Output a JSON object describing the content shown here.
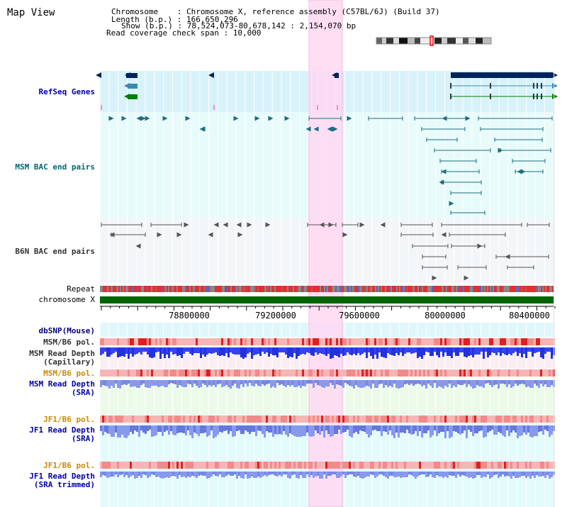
{
  "title": "Map View",
  "header": {
    "line1": "Chromosome    : Chromosome X, reference assembly (C57BL/6J) (Build 37)",
    "line2": "Length (b.p.) : 166,650,296",
    "line3": "Show (b.p.) : 78,524,073-80,678,142 : 2,154,070 bp",
    "line4": "Read coverage check span : 10,000"
  },
  "tracks": {
    "refseq": "RefSeq Genes",
    "msm_bac": "MSM BAC end pairs",
    "b6n_bac": "B6N BAC end pairs",
    "repeat": "Repeat",
    "chromosome": "chromosome X",
    "dbsnp": "dbSNP(Mouse)",
    "msm_b6_pol_1": "MSM/B6 pol.",
    "msm_read_depth_cap": "MSM Read Depth",
    "msm_read_depth_cap_sub": "(Capillary)",
    "msm_b6_pol_2": "MSM/B6 pol.",
    "msm_read_depth_sra": "MSM Read Depth",
    "msm_read_depth_sra_sub": "(SRA)",
    "jf1_b6_pol_1": "JF1/B6 pol.",
    "jf1_read_depth_sra": "JF1 Read Depth",
    "jf1_read_depth_sra_sub": "(SRA)",
    "jf1_b6_pol_2": "JF1/B6 pol.",
    "jf1_read_depth_trim": "JF1 Read Depth",
    "jf1_read_depth_trim_sub": "(SRA trimmed)"
  },
  "axis": {
    "ticks": [
      "78800000",
      "79200000",
      "79600000",
      "80000000",
      "80400000"
    ]
  },
  "colors": {
    "highlight": "#ffd8f2",
    "refseq_bg": "#d8f2fa",
    "gene_dark": "#00235a",
    "msm_bac": "#1a6e80",
    "b6n_bac": "#555555",
    "chromosome": "#006400",
    "polymorph": "#f28080",
    "depth_dark": "#2233dd",
    "depth_light": "#8899ee"
  }
}
